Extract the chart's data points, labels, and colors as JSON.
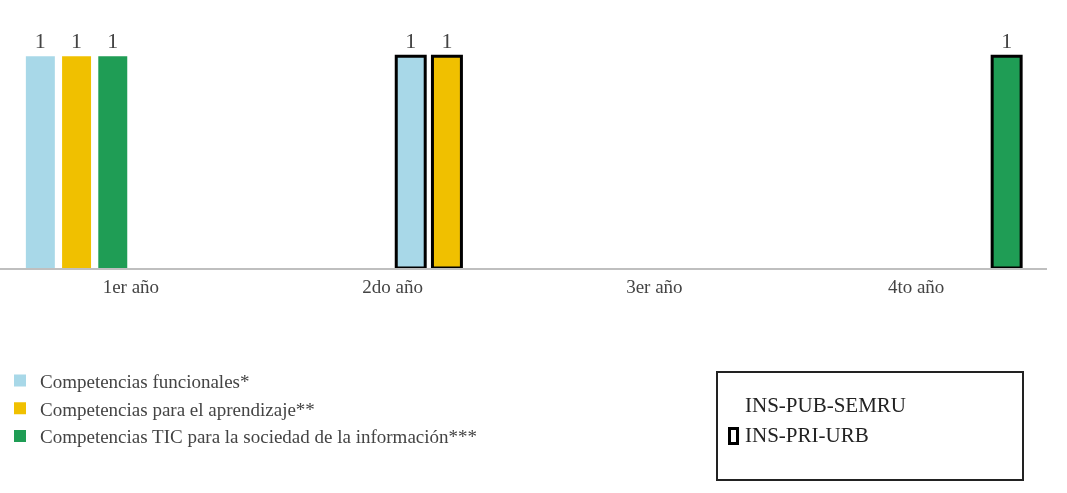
{
  "chart_data": {
    "type": "bar",
    "categories": [
      "1er año",
      "2do año",
      "3er año",
      "4to año"
    ],
    "series": [
      {
        "name": "Competencias funcionales*",
        "color": "#a8d8e8",
        "values": [
          1,
          null,
          null,
          null
        ]
      },
      {
        "name": "Competencias para el aprendizaje**",
        "color": "#f0c000",
        "values": [
          1,
          null,
          null,
          null
        ]
      },
      {
        "name": "Competencias TIC para la sociedad de la información***",
        "color": "#1f9d55",
        "values": [
          1,
          null,
          null,
          null
        ]
      },
      {
        "color": "#a8d8e8",
        "values": [
          null,
          1,
          null,
          null
        ]
      },
      {
        "color": "#f0c000",
        "values": [
          null,
          1,
          null,
          null
        ]
      },
      {
        "color": "#1f9d55",
        "values": [
          null,
          null,
          null,
          1
        ]
      }
    ],
    "data_labels": true,
    "legend": "bottom left",
    "grid": false,
    "annotations": [
      "INS-PUB-SEMRU",
      "INS-PRI-URB"
    ]
  }
}
